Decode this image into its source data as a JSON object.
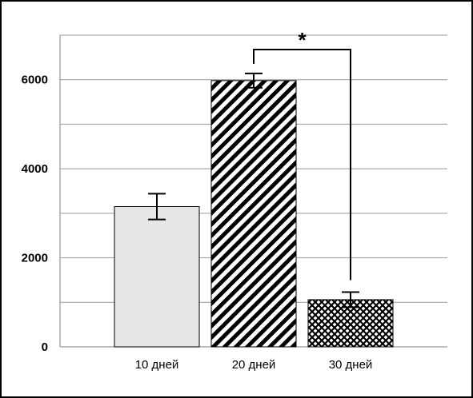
{
  "chart_data": {
    "type": "bar",
    "title": "",
    "xlabel": "",
    "ylabel": "",
    "ylim": [
      0,
      7000
    ],
    "yticks": [
      0,
      2000,
      4000,
      6000
    ],
    "ytick_labels": [
      "0",
      "2000",
      "4000",
      "6000"
    ],
    "grid": true,
    "grid_step": 1000,
    "categories": [
      "10 дней",
      "20 дней",
      "30 дней"
    ],
    "values": [
      3150,
      5980,
      1060
    ],
    "errors": [
      290,
      160,
      170
    ],
    "fills": [
      "solid-light-gray",
      "diagonal-stripes",
      "crosshatch"
    ],
    "significance": {
      "between": [
        "20 дней",
        "30 дней"
      ],
      "label": "*"
    }
  },
  "colors": {
    "bar_light": "#e6e6e6",
    "pattern_ink": "#000000",
    "grid": "#999999",
    "axis": "#808080"
  }
}
